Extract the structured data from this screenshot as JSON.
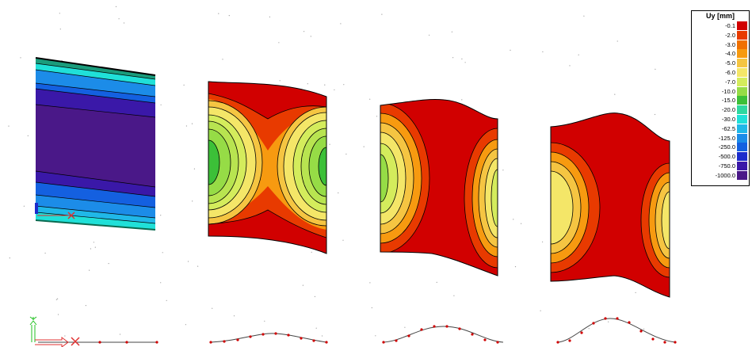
{
  "legend": {
    "title": "Uy [mm]",
    "items": [
      {
        "label": "-0.1",
        "color": "#d10000"
      },
      {
        "label": "-2.0",
        "color": "#e83a00"
      },
      {
        "label": "-3.0",
        "color": "#f07000"
      },
      {
        "label": "-4.0",
        "color": "#f79a10"
      },
      {
        "label": "-5.0",
        "color": "#f5c542"
      },
      {
        "label": "-6.0",
        "color": "#f4e668"
      },
      {
        "label": "-7.0",
        "color": "#d4ec5c"
      },
      {
        "label": "-10.0",
        "color": "#96dc46"
      },
      {
        "label": "-15.0",
        "color": "#3cc038"
      },
      {
        "label": "-20.0",
        "color": "#2ed8a0"
      },
      {
        "label": "-30.0",
        "color": "#20e0d8"
      },
      {
        "label": "-62.5",
        "color": "#20b8e8"
      },
      {
        "label": "-125.0",
        "color": "#1c8ce8"
      },
      {
        "label": "-250.0",
        "color": "#1460e0"
      },
      {
        "label": "-500.0",
        "color": "#1c2ccc"
      },
      {
        "label": "-750.0",
        "color": "#3a18a8"
      },
      {
        "label": "-1000.0",
        "color": "#4a1888"
      }
    ]
  },
  "views": {
    "first_panel": "uniform blue banding",
    "panels_count": 4
  },
  "axes_triad": {
    "y_label": "Y",
    "x_marker": "X"
  }
}
